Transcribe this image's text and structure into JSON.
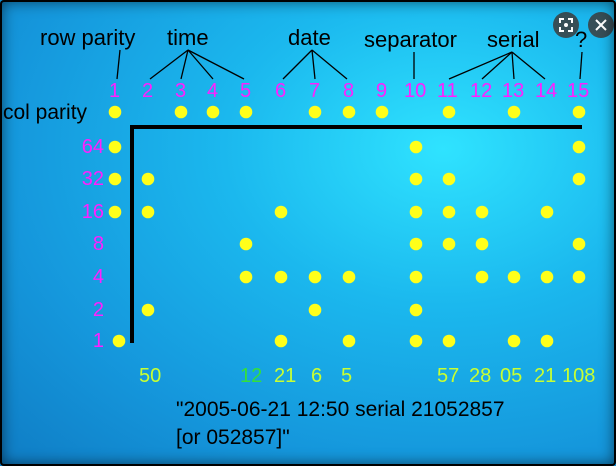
{
  "headers": {
    "row_parity": "row parity",
    "time": "time",
    "date": "date",
    "separator": "separator",
    "serial": "serial",
    "unknown": "?"
  },
  "col_parity_label": "col parity",
  "column_numbers": [
    "1",
    "2",
    "3",
    "4",
    "5",
    "6",
    "7",
    "8",
    "9",
    "10",
    "11",
    "12",
    "13",
    "14",
    "15"
  ],
  "row_weights": [
    "64",
    "32",
    "16",
    "8",
    "4",
    "2",
    "1"
  ],
  "column_values": [
    "50",
    "12",
    "21",
    "6",
    "5",
    "57",
    "28",
    "05",
    "21",
    "108"
  ],
  "caption_line1": "\"2005-06-21 12:50 serial 21052857",
  "caption_line2": "[or 052857]\"",
  "colors": {
    "dot": "#ffff1a",
    "column_number": "#ff20ff",
    "value_label": "#c8ff32",
    "value_label_alt": "#34e03a",
    "background": "#1aa8e6"
  },
  "icons": [
    "scan-icon",
    "close-icon"
  ]
}
